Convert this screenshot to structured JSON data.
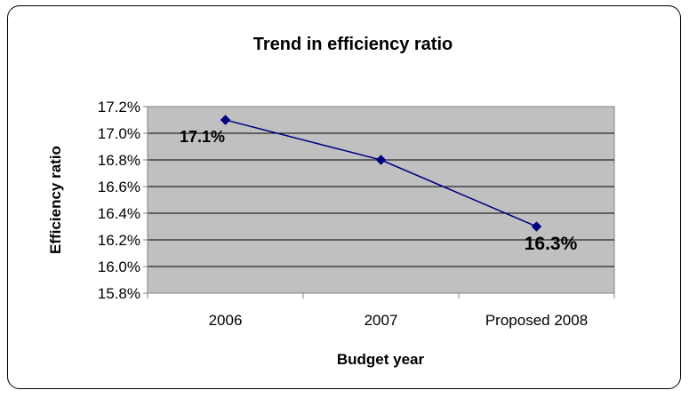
{
  "chart_data": {
    "type": "line",
    "title": "Trend in efficiency ratio",
    "xlabel": "Budget year",
    "ylabel": "Efficiency ratio",
    "categories": [
      "2006",
      "2007",
      "Proposed 2008"
    ],
    "series": [
      {
        "values": [
          17.1,
          16.8,
          16.3
        ],
        "color": "#000080"
      }
    ],
    "data_labels": [
      "17.1%",
      "",
      "16.3%"
    ],
    "ylim": [
      15.8,
      17.2
    ],
    "yticks": [
      15.8,
      16.0,
      16.2,
      16.4,
      16.6,
      16.8,
      17.0,
      17.2
    ],
    "ytick_labels": [
      "15.8%",
      "16.0%",
      "16.2%",
      "16.4%",
      "16.6%",
      "16.8%",
      "17.0%",
      "17.2%"
    ],
    "plot_background": "#c0c0c0",
    "grid": true,
    "legend": false
  }
}
